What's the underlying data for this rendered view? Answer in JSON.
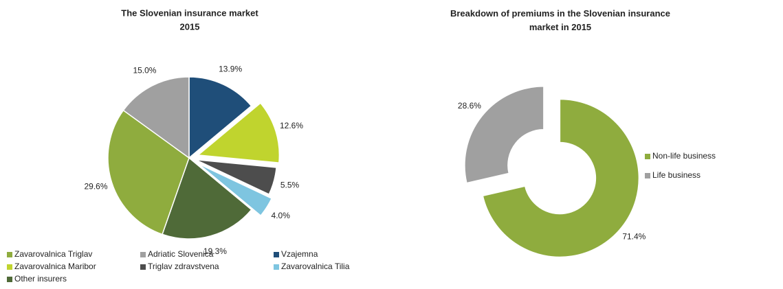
{
  "chart_data": [
    {
      "type": "pie",
      "title": "The Slovenian insurance market",
      "subtitle": "2015",
      "categories": [
        "Zavarovalnica Triglav",
        "Adriatic Slovenica",
        "Vzajemna",
        "Zavarovalnica Maribor",
        "Triglav zdravstvena",
        "Zavarovalnica Tilia",
        "Other insurers"
      ],
      "values": [
        29.6,
        15.0,
        13.9,
        12.6,
        5.5,
        4.0,
        19.3
      ],
      "value_labels": [
        "29.6%",
        "15.0%",
        "13.9%",
        "12.6%",
        "5.5%",
        "4.0%",
        "19.3%"
      ],
      "colors": [
        "#8fac3e",
        "#a0a0a0",
        "#1f4e79",
        "#c0d42e",
        "#4d4d4d",
        "#7ec5e0",
        "#4f6a38"
      ],
      "legend": "bottom"
    },
    {
      "type": "donut",
      "title": "Breakdown of premiums in the Slovenian insurance market in 2015",
      "categories": [
        "Non-life business",
        "Life business"
      ],
      "values": [
        71.4,
        28.6
      ],
      "value_labels": [
        "71.4%",
        "28.6%"
      ],
      "colors": [
        "#8fac3e",
        "#a0a0a0"
      ],
      "legend": "right"
    }
  ]
}
